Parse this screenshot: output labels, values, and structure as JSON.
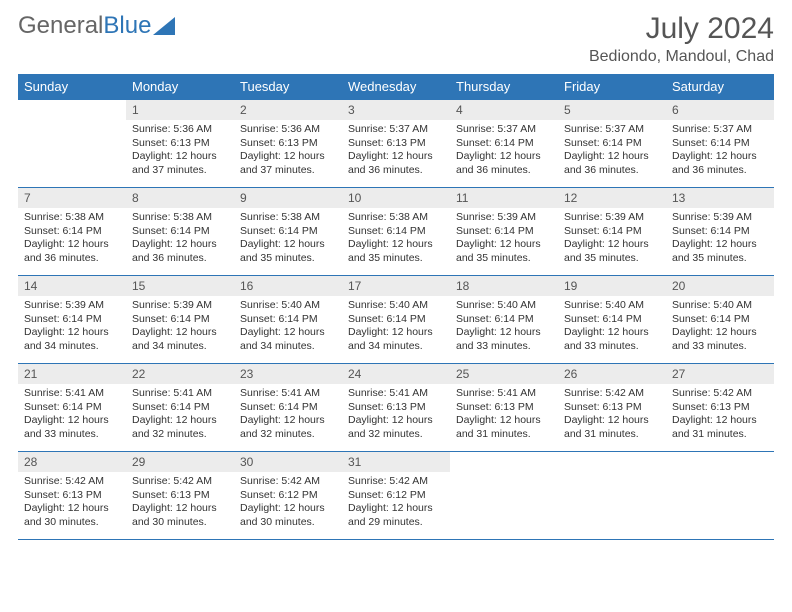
{
  "logo": {
    "text_gray": "General",
    "text_blue": "Blue"
  },
  "title": "July 2024",
  "location": "Bediondo, Mandoul, Chad",
  "colors": {
    "header_bg": "#2e75b6",
    "header_text": "#ffffff",
    "daynum_bg": "#ececec",
    "border": "#2e75b6",
    "body_bg": "#ffffff"
  },
  "day_labels": [
    "Sunday",
    "Monday",
    "Tuesday",
    "Wednesday",
    "Thursday",
    "Friday",
    "Saturday"
  ],
  "first_weekday": 1,
  "days_in_month": 31,
  "days": {
    "1": {
      "sunrise": "5:36 AM",
      "sunset": "6:13 PM",
      "daylight": "12 hours and 37 minutes."
    },
    "2": {
      "sunrise": "5:36 AM",
      "sunset": "6:13 PM",
      "daylight": "12 hours and 37 minutes."
    },
    "3": {
      "sunrise": "5:37 AM",
      "sunset": "6:13 PM",
      "daylight": "12 hours and 36 minutes."
    },
    "4": {
      "sunrise": "5:37 AM",
      "sunset": "6:14 PM",
      "daylight": "12 hours and 36 minutes."
    },
    "5": {
      "sunrise": "5:37 AM",
      "sunset": "6:14 PM",
      "daylight": "12 hours and 36 minutes."
    },
    "6": {
      "sunrise": "5:37 AM",
      "sunset": "6:14 PM",
      "daylight": "12 hours and 36 minutes."
    },
    "7": {
      "sunrise": "5:38 AM",
      "sunset": "6:14 PM",
      "daylight": "12 hours and 36 minutes."
    },
    "8": {
      "sunrise": "5:38 AM",
      "sunset": "6:14 PM",
      "daylight": "12 hours and 36 minutes."
    },
    "9": {
      "sunrise": "5:38 AM",
      "sunset": "6:14 PM",
      "daylight": "12 hours and 35 minutes."
    },
    "10": {
      "sunrise": "5:38 AM",
      "sunset": "6:14 PM",
      "daylight": "12 hours and 35 minutes."
    },
    "11": {
      "sunrise": "5:39 AM",
      "sunset": "6:14 PM",
      "daylight": "12 hours and 35 minutes."
    },
    "12": {
      "sunrise": "5:39 AM",
      "sunset": "6:14 PM",
      "daylight": "12 hours and 35 minutes."
    },
    "13": {
      "sunrise": "5:39 AM",
      "sunset": "6:14 PM",
      "daylight": "12 hours and 35 minutes."
    },
    "14": {
      "sunrise": "5:39 AM",
      "sunset": "6:14 PM",
      "daylight": "12 hours and 34 minutes."
    },
    "15": {
      "sunrise": "5:39 AM",
      "sunset": "6:14 PM",
      "daylight": "12 hours and 34 minutes."
    },
    "16": {
      "sunrise": "5:40 AM",
      "sunset": "6:14 PM",
      "daylight": "12 hours and 34 minutes."
    },
    "17": {
      "sunrise": "5:40 AM",
      "sunset": "6:14 PM",
      "daylight": "12 hours and 34 minutes."
    },
    "18": {
      "sunrise": "5:40 AM",
      "sunset": "6:14 PM",
      "daylight": "12 hours and 33 minutes."
    },
    "19": {
      "sunrise": "5:40 AM",
      "sunset": "6:14 PM",
      "daylight": "12 hours and 33 minutes."
    },
    "20": {
      "sunrise": "5:40 AM",
      "sunset": "6:14 PM",
      "daylight": "12 hours and 33 minutes."
    },
    "21": {
      "sunrise": "5:41 AM",
      "sunset": "6:14 PM",
      "daylight": "12 hours and 33 minutes."
    },
    "22": {
      "sunrise": "5:41 AM",
      "sunset": "6:14 PM",
      "daylight": "12 hours and 32 minutes."
    },
    "23": {
      "sunrise": "5:41 AM",
      "sunset": "6:14 PM",
      "daylight": "12 hours and 32 minutes."
    },
    "24": {
      "sunrise": "5:41 AM",
      "sunset": "6:13 PM",
      "daylight": "12 hours and 32 minutes."
    },
    "25": {
      "sunrise": "5:41 AM",
      "sunset": "6:13 PM",
      "daylight": "12 hours and 31 minutes."
    },
    "26": {
      "sunrise": "5:42 AM",
      "sunset": "6:13 PM",
      "daylight": "12 hours and 31 minutes."
    },
    "27": {
      "sunrise": "5:42 AM",
      "sunset": "6:13 PM",
      "daylight": "12 hours and 31 minutes."
    },
    "28": {
      "sunrise": "5:42 AM",
      "sunset": "6:13 PM",
      "daylight": "12 hours and 30 minutes."
    },
    "29": {
      "sunrise": "5:42 AM",
      "sunset": "6:13 PM",
      "daylight": "12 hours and 30 minutes."
    },
    "30": {
      "sunrise": "5:42 AM",
      "sunset": "6:12 PM",
      "daylight": "12 hours and 30 minutes."
    },
    "31": {
      "sunrise": "5:42 AM",
      "sunset": "6:12 PM",
      "daylight": "12 hours and 29 minutes."
    }
  },
  "labels": {
    "sunrise": "Sunrise:",
    "sunset": "Sunset:",
    "daylight": "Daylight:"
  }
}
